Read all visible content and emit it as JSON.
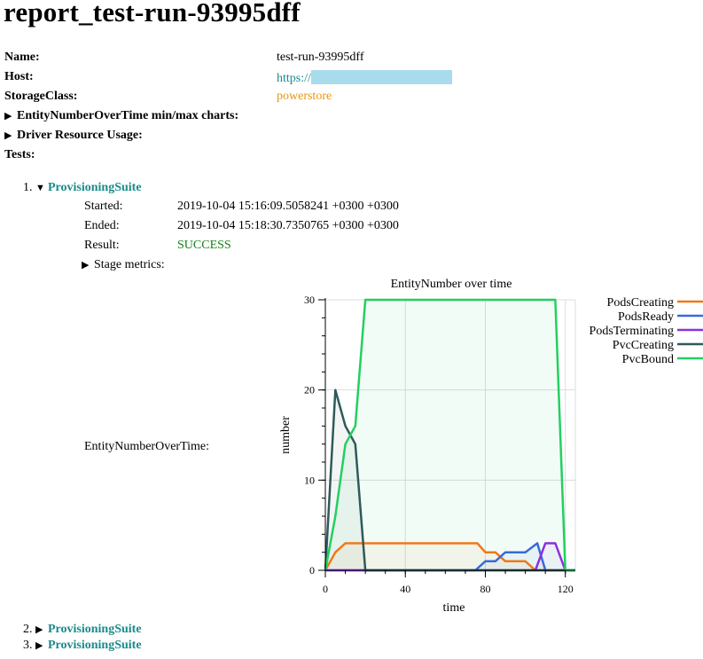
{
  "report_title": "report_test-run-93995dff",
  "info": {
    "name_label": "Name:",
    "name_value": "test-run-93995dff",
    "host_label": "Host:",
    "host_value": "https://",
    "storage_label": "StorageClass:",
    "storage_value": "powerstore",
    "entity_minmax_label": "EntityNumberOverTime min/max charts:",
    "driver_usage_label": "Driver Resource Usage:",
    "tests_label": "Tests:"
  },
  "tests": [
    {
      "index": "1.",
      "name": "ProvisioningSuite",
      "expanded": true,
      "started_label": "Started:",
      "started_value": "2019-10-04 15:16:09.5058241 +0300 +0300",
      "ended_label": "Ended:",
      "ended_value": "2019-10-04 15:18:30.7350765 +0300 +0300",
      "result_label": "Result:",
      "result_value": "SUCCESS",
      "stage_metrics_label": "Stage metrics:",
      "entity_over_time_label": "EntityNumberOverTime:"
    },
    {
      "index": "2.",
      "name": "ProvisioningSuite",
      "expanded": false
    },
    {
      "index": "3.",
      "name": "ProvisioningSuite",
      "expanded": false
    }
  ],
  "icons": {
    "collapsed": "triangle-right-icon",
    "expanded": "triangle-down-icon"
  },
  "chart_data": {
    "type": "line",
    "title": "EntityNumber over time",
    "xlabel": "time",
    "ylabel": "number",
    "xlim": [
      0,
      125
    ],
    "ylim": [
      0,
      30
    ],
    "x_ticks": [
      0,
      40,
      80,
      120
    ],
    "y_ticks": [
      0,
      10,
      20,
      30
    ],
    "grid": true,
    "legend_placement": "top-right",
    "series": [
      {
        "name": "PodsCreating",
        "color": "#f07818",
        "x": [
          0,
          5,
          10,
          76,
          80,
          85,
          90,
          100,
          105,
          125
        ],
        "y": [
          0,
          2,
          3,
          3,
          2,
          2,
          1,
          1,
          0,
          0
        ]
      },
      {
        "name": "PodsReady",
        "color": "#3a6ad8",
        "x": [
          0,
          75,
          80,
          85,
          90,
          100,
          106,
          110,
          125
        ],
        "y": [
          0,
          0,
          1,
          1,
          2,
          2,
          3,
          0,
          0
        ]
      },
      {
        "name": "PodsTerminating",
        "color": "#8a30e0",
        "x": [
          0,
          20,
          105,
          110,
          115,
          120,
          125
        ],
        "y": [
          0,
          0,
          0,
          3,
          3,
          0,
          0
        ]
      },
      {
        "name": "PvcCreating",
        "color": "#2e5a5a",
        "x": [
          0,
          5,
          10,
          15,
          20,
          125
        ],
        "y": [
          0,
          20,
          16,
          14,
          0,
          0
        ]
      },
      {
        "name": "PvcBound",
        "color": "#22d060",
        "x": [
          0,
          5,
          10,
          15,
          20,
          115,
          120,
          125
        ],
        "y": [
          0,
          6,
          14,
          16,
          30,
          30,
          0,
          0
        ]
      }
    ]
  }
}
